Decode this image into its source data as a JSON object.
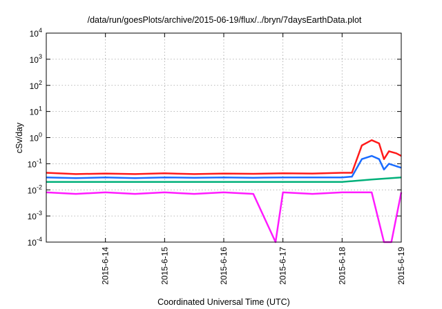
{
  "chart_data": {
    "type": "line",
    "title": "/data/run/goesPlots/archive/2015-06-19/flux/../bryn/7daysEarthData.plot",
    "xlabel": "Coordinated Universal Time (UTC)",
    "ylabel": "cSv/day",
    "x_range": [
      "2015-06-13T00:00",
      "2015-06-19T00:00"
    ],
    "y_scale": "log",
    "ylim": [
      0.0001,
      10000
    ],
    "grid": true,
    "y_ticks": [
      {
        "value": 0.0001,
        "base": "10",
        "exp": "-4"
      },
      {
        "value": 0.001,
        "base": "10",
        "exp": "-3"
      },
      {
        "value": 0.01,
        "base": "10",
        "exp": "-2"
      },
      {
        "value": 0.1,
        "base": "10",
        "exp": "-1"
      },
      {
        "value": 1,
        "base": "10",
        "exp": "0"
      },
      {
        "value": 10,
        "base": "10",
        "exp": "1"
      },
      {
        "value": 100,
        "base": "10",
        "exp": "2"
      },
      {
        "value": 1000,
        "base": "10",
        "exp": "3"
      },
      {
        "value": 10000,
        "base": "10",
        "exp": "4"
      }
    ],
    "x_ticks": [
      {
        "value": "2015-06-14",
        "label": "2015-6-14"
      },
      {
        "value": "2015-06-15",
        "label": "2015-6-15"
      },
      {
        "value": "2015-06-16",
        "label": "2015-6-16"
      },
      {
        "value": "2015-06-17",
        "label": "2015-6-17"
      },
      {
        "value": "2015-06-18",
        "label": "2015-6-18"
      },
      {
        "value": "2015-06-19",
        "label": "2015-6-19"
      }
    ],
    "series": [
      {
        "color": "#ff1a1a",
        "values": [
          [
            "2015-06-13T00:00",
            0.045
          ],
          [
            "2015-06-13T12:00",
            0.04
          ],
          [
            "2015-06-14T00:00",
            0.042
          ],
          [
            "2015-06-14T12:00",
            0.04
          ],
          [
            "2015-06-15T00:00",
            0.043
          ],
          [
            "2015-06-15T12:00",
            0.04
          ],
          [
            "2015-06-16T00:00",
            0.042
          ],
          [
            "2015-06-16T12:00",
            0.041
          ],
          [
            "2015-06-17T00:00",
            0.043
          ],
          [
            "2015-06-17T12:00",
            0.042
          ],
          [
            "2015-06-18T00:00",
            0.045
          ],
          [
            "2015-06-18T04:00",
            0.045
          ],
          [
            "2015-06-18T08:00",
            0.5
          ],
          [
            "2015-06-18T12:00",
            0.8
          ],
          [
            "2015-06-18T15:00",
            0.6
          ],
          [
            "2015-06-18T17:00",
            0.15
          ],
          [
            "2015-06-18T19:00",
            0.3
          ],
          [
            "2015-06-18T22:00",
            0.25
          ],
          [
            "2015-06-19T00:00",
            0.2
          ]
        ]
      },
      {
        "color": "#1a6cff",
        "values": [
          [
            "2015-06-13T00:00",
            0.03
          ],
          [
            "2015-06-13T12:00",
            0.028
          ],
          [
            "2015-06-14T00:00",
            0.03
          ],
          [
            "2015-06-14T12:00",
            0.028
          ],
          [
            "2015-06-15T00:00",
            0.03
          ],
          [
            "2015-06-15T12:00",
            0.029
          ],
          [
            "2015-06-16T00:00",
            0.03
          ],
          [
            "2015-06-16T12:00",
            0.029
          ],
          [
            "2015-06-17T00:00",
            0.03
          ],
          [
            "2015-06-17T12:00",
            0.03
          ],
          [
            "2015-06-18T00:00",
            0.03
          ],
          [
            "2015-06-18T04:00",
            0.032
          ],
          [
            "2015-06-18T08:00",
            0.15
          ],
          [
            "2015-06-18T12:00",
            0.2
          ],
          [
            "2015-06-18T15:00",
            0.15
          ],
          [
            "2015-06-18T17:00",
            0.06
          ],
          [
            "2015-06-18T19:00",
            0.1
          ],
          [
            "2015-06-18T22:00",
            0.08
          ],
          [
            "2015-06-19T00:00",
            0.07
          ]
        ]
      },
      {
        "color": "#00b07a",
        "values": [
          [
            "2015-06-13T00:00",
            0.02
          ],
          [
            "2015-06-14T00:00",
            0.02
          ],
          [
            "2015-06-15T00:00",
            0.02
          ],
          [
            "2015-06-16T00:00",
            0.02
          ],
          [
            "2015-06-17T00:00",
            0.02
          ],
          [
            "2015-06-18T00:00",
            0.02
          ],
          [
            "2015-06-18T12:00",
            0.025
          ],
          [
            "2015-06-19T00:00",
            0.03
          ]
        ]
      },
      {
        "color": "#ff1aff",
        "values": [
          [
            "2015-06-13T00:00",
            0.008
          ],
          [
            "2015-06-13T12:00",
            0.007
          ],
          [
            "2015-06-14T00:00",
            0.008
          ],
          [
            "2015-06-14T12:00",
            0.007
          ],
          [
            "2015-06-15T00:00",
            0.008
          ],
          [
            "2015-06-15T12:00",
            0.007
          ],
          [
            "2015-06-16T00:00",
            0.008
          ],
          [
            "2015-06-16T12:00",
            0.007
          ],
          [
            "2015-06-16T21:00",
            0.0001
          ],
          [
            "2015-06-17T00:00",
            0.008
          ],
          [
            "2015-06-17T12:00",
            0.007
          ],
          [
            "2015-06-18T00:00",
            0.008
          ],
          [
            "2015-06-18T12:00",
            0.008
          ],
          [
            "2015-06-18T17:00",
            0.0001
          ],
          [
            "2015-06-18T20:00",
            0.0001
          ],
          [
            "2015-06-19T00:00",
            0.008
          ]
        ]
      }
    ]
  }
}
